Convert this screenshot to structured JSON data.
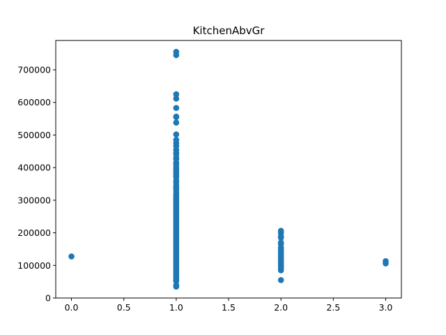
{
  "chart_data": {
    "type": "scatter",
    "title": "KitchenAbvGr",
    "xlabel": "",
    "ylabel": "",
    "xlim": [
      -0.15,
      3.15
    ],
    "ylim": [
      0,
      790000
    ],
    "x_ticks": [
      0.0,
      0.5,
      1.0,
      1.5,
      2.0,
      2.5,
      3.0
    ],
    "x_tick_labels": [
      "0.0",
      "0.5",
      "1.0",
      "1.5",
      "2.0",
      "2.5",
      "3.0"
    ],
    "y_ticks": [
      0,
      100000,
      200000,
      300000,
      400000,
      500000,
      600000,
      700000
    ],
    "y_tick_labels": [
      "0",
      "100000",
      "200000",
      "300000",
      "400000",
      "500000",
      "600000",
      "700000"
    ],
    "grid": false,
    "color": "#1f77b4",
    "series": [
      {
        "points": [
          {
            "x": 0,
            "y": 127500
          },
          {
            "x": 1,
            "y": 755000
          },
          {
            "x": 1,
            "y": 745000
          },
          {
            "x": 1,
            "y": 625000
          },
          {
            "x": 1,
            "y": 611657
          },
          {
            "x": 1,
            "y": 582933
          },
          {
            "x": 1,
            "y": 556581
          },
          {
            "x": 1,
            "y": 555000
          },
          {
            "x": 1,
            "y": 538000
          },
          {
            "x": 1,
            "y": 501837
          },
          {
            "x": 1,
            "y": 485000
          },
          {
            "x": 1,
            "y": 475000
          },
          {
            "x": 1,
            "y": 466500
          },
          {
            "x": 1,
            "y": 455000
          },
          {
            "x": 1,
            "y": 446261
          },
          {
            "x": 1,
            "y": 440000
          },
          {
            "x": 1,
            "y": 430000
          },
          {
            "x": 1,
            "y": 426000
          },
          {
            "x": 1,
            "y": 415298
          },
          {
            "x": 1,
            "y": 410000
          },
          {
            "x": 1,
            "y": 402861
          },
          {
            "x": 1,
            "y": 395000
          },
          {
            "x": 1,
            "y": 392500
          },
          {
            "x": 1,
            "y": 385000
          },
          {
            "x": 1,
            "y": 380000
          },
          {
            "x": 1,
            "y": 375000
          },
          {
            "x": 1,
            "y": 369900
          },
          {
            "x": 1,
            "y": 360000
          },
          {
            "x": 1,
            "y": 354000
          },
          {
            "x": 1,
            "y": 345000
          },
          {
            "x": 1,
            "y": 340000
          },
          {
            "x": 1,
            "y": 335000
          },
          {
            "x": 1,
            "y": 328000
          },
          {
            "x": 1,
            "y": 320000
          },
          {
            "x": 1,
            "y": 315000
          },
          {
            "x": 1,
            "y": 310000
          },
          {
            "x": 1,
            "y": 305000
          },
          {
            "x": 1,
            "y": 300000
          },
          {
            "x": 1,
            "y": 295000
          },
          {
            "x": 1,
            "y": 290000
          },
          {
            "x": 1,
            "y": 285000
          },
          {
            "x": 1,
            "y": 280000
          },
          {
            "x": 1,
            "y": 275000
          },
          {
            "x": 1,
            "y": 270000
          },
          {
            "x": 1,
            "y": 265000
          },
          {
            "x": 1,
            "y": 260000
          },
          {
            "x": 1,
            "y": 255000
          },
          {
            "x": 1,
            "y": 250000
          },
          {
            "x": 1,
            "y": 245000
          },
          {
            "x": 1,
            "y": 240000
          },
          {
            "x": 1,
            "y": 235000
          },
          {
            "x": 1,
            "y": 230000
          },
          {
            "x": 1,
            "y": 225000
          },
          {
            "x": 1,
            "y": 220000
          },
          {
            "x": 1,
            "y": 215000
          },
          {
            "x": 1,
            "y": 210000
          },
          {
            "x": 1,
            "y": 205000
          },
          {
            "x": 1,
            "y": 200000
          },
          {
            "x": 1,
            "y": 195000
          },
          {
            "x": 1,
            "y": 190000
          },
          {
            "x": 1,
            "y": 185000
          },
          {
            "x": 1,
            "y": 180000
          },
          {
            "x": 1,
            "y": 175000
          },
          {
            "x": 1,
            "y": 170000
          },
          {
            "x": 1,
            "y": 165000
          },
          {
            "x": 1,
            "y": 160000
          },
          {
            "x": 1,
            "y": 155000
          },
          {
            "x": 1,
            "y": 150000
          },
          {
            "x": 1,
            "y": 145000
          },
          {
            "x": 1,
            "y": 140000
          },
          {
            "x": 1,
            "y": 135000
          },
          {
            "x": 1,
            "y": 130000
          },
          {
            "x": 1,
            "y": 125000
          },
          {
            "x": 1,
            "y": 120000
          },
          {
            "x": 1,
            "y": 115000
          },
          {
            "x": 1,
            "y": 110000
          },
          {
            "x": 1,
            "y": 105000
          },
          {
            "x": 1,
            "y": 100000
          },
          {
            "x": 1,
            "y": 95000
          },
          {
            "x": 1,
            "y": 90000
          },
          {
            "x": 1,
            "y": 85000
          },
          {
            "x": 1,
            "y": 80000
          },
          {
            "x": 1,
            "y": 75000
          },
          {
            "x": 1,
            "y": 70000
          },
          {
            "x": 1,
            "y": 65000
          },
          {
            "x": 1,
            "y": 60000
          },
          {
            "x": 1,
            "y": 55000
          },
          {
            "x": 1,
            "y": 52000
          },
          {
            "x": 1,
            "y": 39300
          },
          {
            "x": 1,
            "y": 34900
          },
          {
            "x": 2,
            "y": 206300
          },
          {
            "x": 2,
            "y": 200000
          },
          {
            "x": 2,
            "y": 190000
          },
          {
            "x": 2,
            "y": 185000
          },
          {
            "x": 2,
            "y": 170000
          },
          {
            "x": 2,
            "y": 165000
          },
          {
            "x": 2,
            "y": 155000
          },
          {
            "x": 2,
            "y": 150000
          },
          {
            "x": 2,
            "y": 145000
          },
          {
            "x": 2,
            "y": 140000
          },
          {
            "x": 2,
            "y": 136000
          },
          {
            "x": 2,
            "y": 130000
          },
          {
            "x": 2,
            "y": 125000
          },
          {
            "x": 2,
            "y": 120000
          },
          {
            "x": 2,
            "y": 115000
          },
          {
            "x": 2,
            "y": 110000
          },
          {
            "x": 2,
            "y": 105000
          },
          {
            "x": 2,
            "y": 100000
          },
          {
            "x": 2,
            "y": 95000
          },
          {
            "x": 2,
            "y": 90000
          },
          {
            "x": 2,
            "y": 85000
          },
          {
            "x": 2,
            "y": 55000
          },
          {
            "x": 3,
            "y": 113000
          },
          {
            "x": 3,
            "y": 106000
          }
        ]
      }
    ]
  }
}
